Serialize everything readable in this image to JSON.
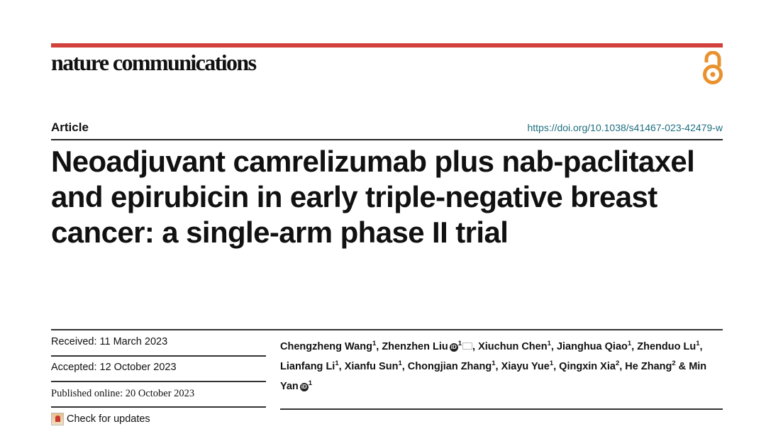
{
  "journal": "nature communications",
  "accent_color": "#d1403a",
  "open_access_icon": "open-access-lock-icon",
  "article_type": "Article",
  "doi": "https://doi.org/10.1038/s41467-023-42479-w",
  "title": "Neoadjuvant camrelizumab plus nab-paclitaxel and epirubicin in early triple-negative breast cancer: a single-arm phase II trial",
  "dates": {
    "received": "Received: 11 March 2023",
    "accepted": "Accepted: 12 October 2023",
    "published": "Published online: 20 October 2023"
  },
  "check_updates": "Check for updates",
  "authors": [
    {
      "name": "Chengzheng Wang",
      "sup": "1"
    },
    {
      "name": "Zhenzhen Liu",
      "sup": "1",
      "orcid": true,
      "email": true
    },
    {
      "name": "Xiuchun Chen",
      "sup": "1"
    },
    {
      "name": "Jianghua Qiao",
      "sup": "1"
    },
    {
      "name": "Zhenduo Lu",
      "sup": "1"
    },
    {
      "name": "Lianfang Li",
      "sup": "1"
    },
    {
      "name": "Xianfu Sun",
      "sup": "1"
    },
    {
      "name": "Chongjian Zhang",
      "sup": "1"
    },
    {
      "name": "Xiayu Yue",
      "sup": "1"
    },
    {
      "name": "Qingxin Xia",
      "sup": "2"
    },
    {
      "name": "He Zhang",
      "sup": "2"
    },
    {
      "name": "Min Yan",
      "sup": "1",
      "orcid": true
    }
  ]
}
